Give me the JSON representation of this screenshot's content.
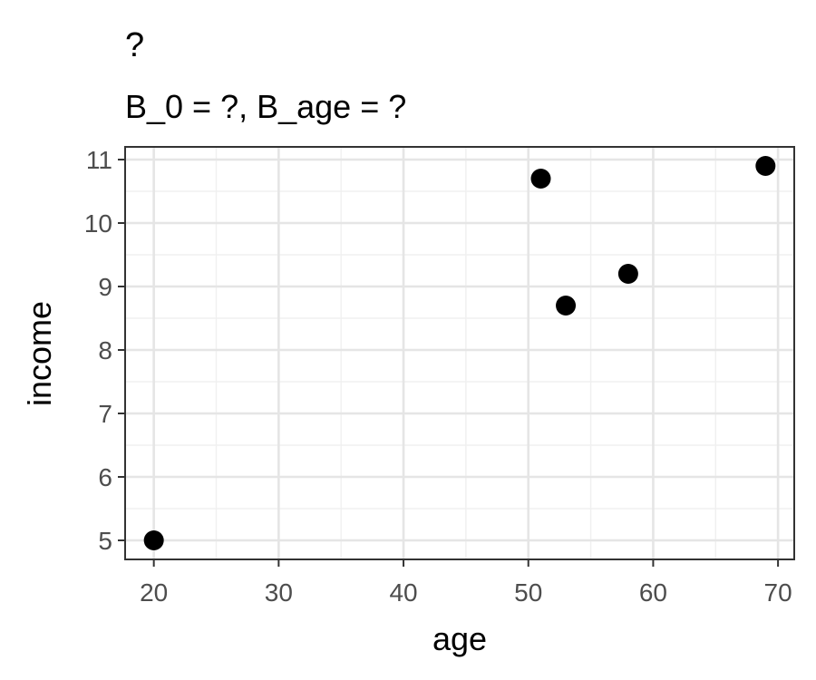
{
  "chart_data": {
    "type": "scatter",
    "title": "?",
    "subtitle": "B_0 = ?, B_age = ?",
    "xlabel": "age",
    "ylabel": "income",
    "xlim": [
      17.7,
      71.3
    ],
    "ylim": [
      4.7,
      11.2
    ],
    "x_ticks": [
      20,
      30,
      40,
      50,
      60,
      70
    ],
    "y_ticks": [
      5,
      6,
      7,
      8,
      9,
      10,
      11
    ],
    "grid": true,
    "points": [
      {
        "x": 20,
        "y": 5.0
      },
      {
        "x": 51,
        "y": 10.7
      },
      {
        "x": 53,
        "y": 8.7
      },
      {
        "x": 58,
        "y": 9.2
      },
      {
        "x": 69,
        "y": 10.9
      }
    ],
    "colors": {
      "points": "#000000",
      "grid": "#e5e5e5",
      "border": "#333333",
      "tick_text": "#4d4d4d"
    }
  }
}
